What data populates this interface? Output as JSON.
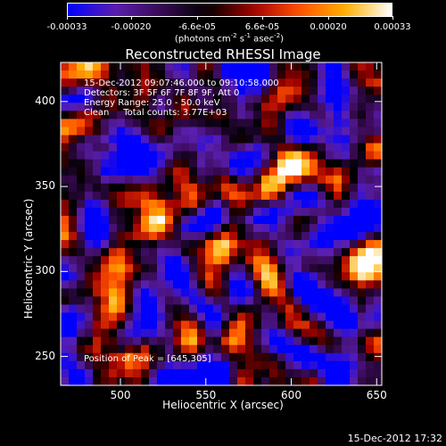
{
  "colorbar": {
    "tick_labels": [
      "-0.00033",
      "-0.00020",
      "-6.6e-05",
      "6.6e-05",
      "0.00020",
      "0.00033"
    ],
    "tick_values": [
      -0.00033,
      -0.0002,
      -6.6e-05,
      6.6e-05,
      0.0002,
      0.00033
    ],
    "range": [
      -0.00033,
      0.00033
    ],
    "unit_parts": [
      "(photons cm",
      "-2",
      " s",
      "-1",
      " asec",
      "-2",
      ")"
    ]
  },
  "title": "Reconstructed RHESSI Image",
  "annotations": {
    "line1": "15-Dec-2012 09:07:46.000 to 09:10:58.000",
    "line2": "Detectors: 3F 5F 6F 7F 8F 9F, Att 0",
    "line3": "Energy Range: 25.0 - 50.0 keV",
    "line4": "Clean     Total counts: 3.77E+03",
    "peak": "Position of Peak = [645,305]"
  },
  "footer": {
    "date": "15-Dec-2012 17:32"
  },
  "chart_data": {
    "type": "heatmap",
    "title": "Reconstructed RHESSI Image",
    "xlabel": "Heliocentric X (arcsec)",
    "ylabel": "Heliocentric Y (arcsec)",
    "xlim": [
      465,
      653
    ],
    "ylim": [
      233,
      423
    ],
    "xticks": [
      500,
      550,
      600,
      650
    ],
    "yticks": [
      250,
      300,
      350,
      400
    ],
    "colormap": [
      "#0000ff",
      "#5a1fb0",
      "#3a0a55",
      "#000000",
      "#a00000",
      "#ff5000",
      "#ffb000",
      "#ffffff"
    ],
    "value_range": [
      -0.00033,
      0.00033
    ],
    "peak": [
      645,
      305
    ]
  }
}
